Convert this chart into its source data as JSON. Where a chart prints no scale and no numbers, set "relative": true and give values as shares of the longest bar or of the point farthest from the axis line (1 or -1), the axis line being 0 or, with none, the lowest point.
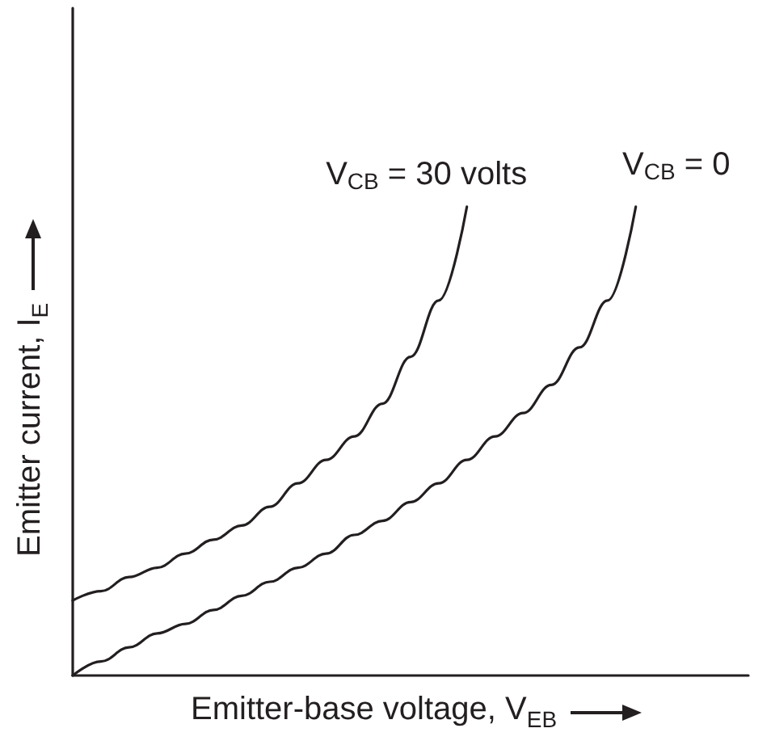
{
  "chart_data": {
    "type": "line",
    "relative": true,
    "xlabel": "Emitter-base voltage, V$_{EB}$",
    "ylabel": "Emitter current, I$_{E}$",
    "categories": [
      null,
      null,
      null,
      null,
      null,
      null,
      null,
      null,
      null,
      null,
      null,
      null,
      null,
      null,
      null,
      null,
      null,
      null,
      null,
      null,
      null,
      null,
      null,
      null,
      null
    ],
    "series": [
      {
        "name": "V$_{CB}$ = 30 volts",
        "color": "#231f20",
        "values": [
          0.16,
          0.18,
          0.21,
          0.23,
          0.26,
          0.29,
          0.32,
          0.36,
          0.41,
          0.46,
          0.51,
          0.58,
          0.68,
          0.8,
          1,
          null,
          null,
          null,
          null,
          null,
          null,
          null,
          null,
          null,
          null
        ]
      },
      {
        "name": "V$_{CB}$ = 0",
        "color": "#231f20",
        "values": [
          0,
          0.03,
          0.06,
          0.09,
          0.11,
          0.14,
          0.17,
          0.2,
          0.23,
          0.26,
          0.3,
          0.33,
          0.37,
          0.41,
          0.46,
          0.51,
          0.56,
          0.62,
          0.7,
          0.8,
          1,
          null,
          null,
          null,
          null
        ]
      }
    ],
    "marker": "none",
    "line_style": "solid",
    "grid": false
  }
}
